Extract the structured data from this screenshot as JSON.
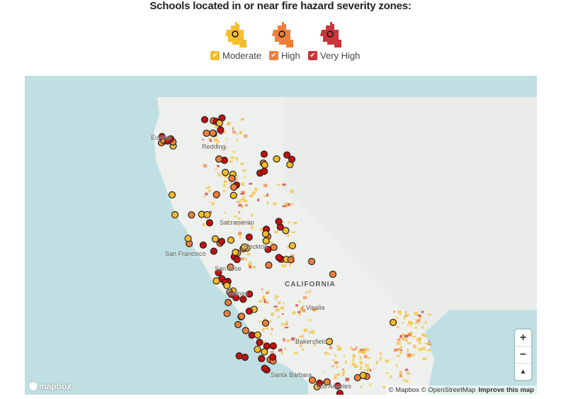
{
  "title": "Schools located in or near fire hazard severity zones:",
  "legend": [
    {
      "label": "Moderate",
      "color": "#f6bd2b",
      "checked": true
    },
    {
      "label": "High",
      "color": "#f07f3a",
      "checked": true
    },
    {
      "label": "Very High",
      "color": "#c9353a",
      "checked": true
    }
  ],
  "map": {
    "state_label": "CALIFORNIA",
    "cities": [
      "Eureka",
      "Redding",
      "Sacramento",
      "Stockton",
      "San Francisco",
      "San Jose",
      "Salinas",
      "Visalia",
      "Bakersfield",
      "Santa Barbara",
      "Los Angeles"
    ],
    "zoom_in": "+",
    "zoom_out": "−",
    "compass": "▲",
    "logo": "mapbox",
    "attribution": {
      "mapbox": "© Mapbox",
      "osm": "© OpenStreetMap",
      "improve": "Improve this map"
    },
    "water_color": "#bfdfe2",
    "land_color": "#eef0ed"
  }
}
